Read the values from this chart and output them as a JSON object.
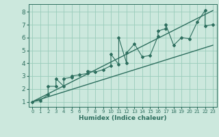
{
  "xlabel": "Humidex (Indice chaleur)",
  "bg_color": "#cce8dd",
  "grid_color": "#99ccbb",
  "line_color": "#2d6e5e",
  "xlim": [
    -0.5,
    23.5
  ],
  "ylim": [
    0.6,
    8.6
  ],
  "xticks": [
    0,
    1,
    2,
    3,
    4,
    5,
    6,
    7,
    8,
    9,
    10,
    11,
    12,
    13,
    14,
    15,
    16,
    17,
    18,
    19,
    20,
    21,
    22,
    23
  ],
  "yticks": [
    1,
    2,
    3,
    4,
    5,
    6,
    7,
    8
  ],
  "scatter_x": [
    0,
    1,
    2,
    2,
    3,
    3,
    4,
    4,
    5,
    5,
    6,
    7,
    7,
    8,
    9,
    10,
    10,
    11,
    11,
    12,
    12,
    13,
    14,
    15,
    16,
    16,
    17,
    17,
    18,
    19,
    20,
    21,
    22,
    22,
    23
  ],
  "scatter_y": [
    1.0,
    1.1,
    1.55,
    2.2,
    2.2,
    2.8,
    2.2,
    2.8,
    2.9,
    3.0,
    3.1,
    3.2,
    3.4,
    3.3,
    3.5,
    3.8,
    4.7,
    3.9,
    6.0,
    4.0,
    4.8,
    5.5,
    4.5,
    4.6,
    6.1,
    6.5,
    6.7,
    7.0,
    5.4,
    6.0,
    5.9,
    7.2,
    8.1,
    6.9,
    7.0
  ],
  "line1_x": [
    0,
    23
  ],
  "line1_y": [
    1.0,
    5.4
  ],
  "line2_x": [
    0,
    23
  ],
  "line2_y": [
    1.0,
    8.1
  ]
}
